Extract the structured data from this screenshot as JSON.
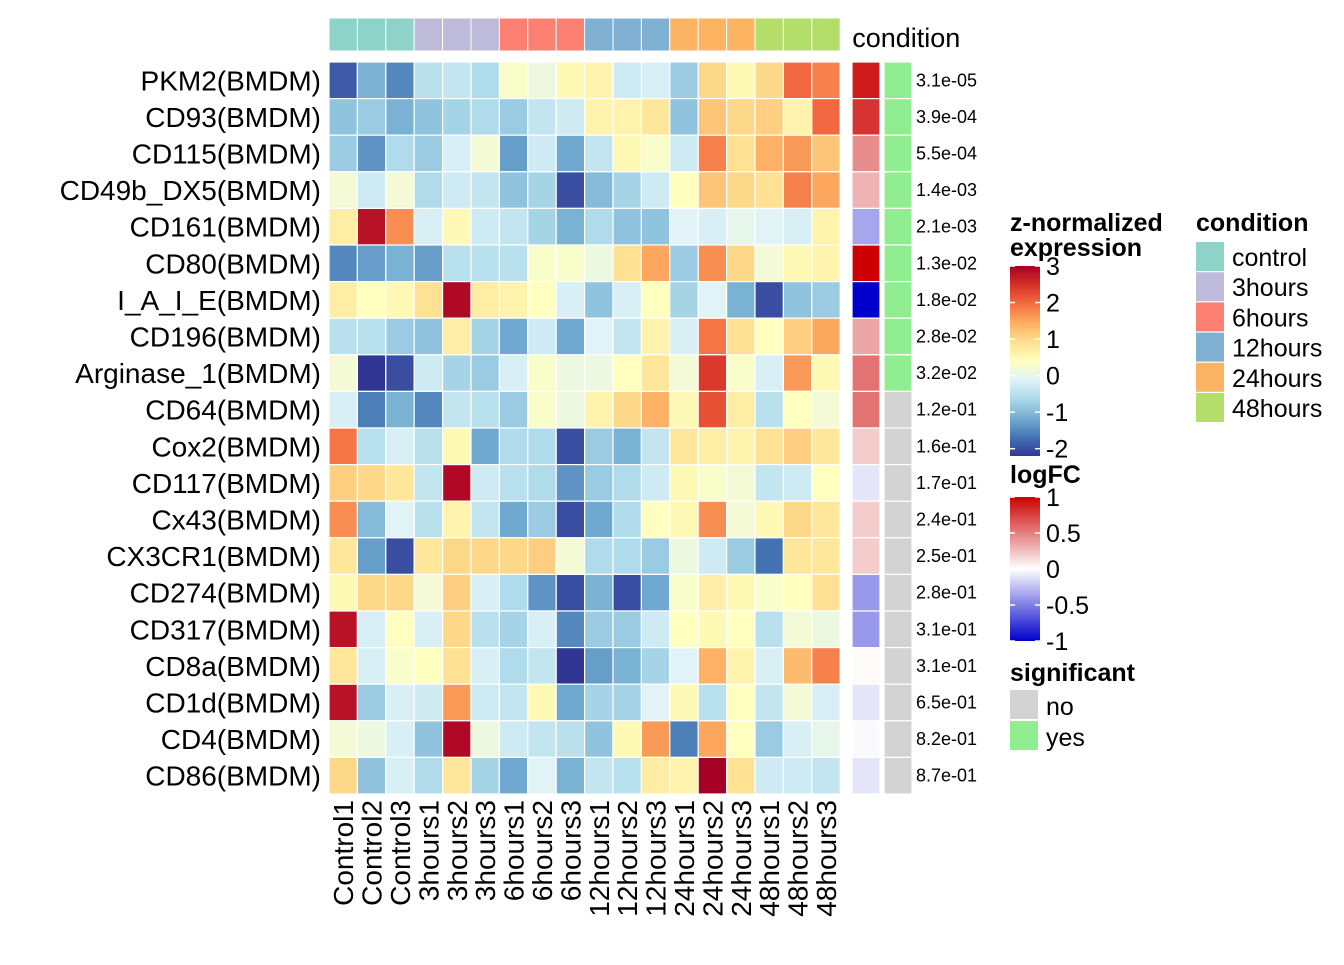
{
  "chart_data": {
    "type": "heatmap",
    "title": "",
    "xlabel": "",
    "ylabel": "",
    "samples": [
      "Control1",
      "Control2",
      "Control3",
      "3hours1",
      "3hours2",
      "3hours3",
      "6hours1",
      "6hours2",
      "6hours3",
      "12hours1",
      "12hours2",
      "12hours3",
      "24hours1",
      "24hours2",
      "24hours3",
      "48hours1",
      "48hours2",
      "48hours3"
    ],
    "sample_condition": [
      "control",
      "control",
      "control",
      "3hours",
      "3hours",
      "3hours",
      "6hours",
      "6hours",
      "6hours",
      "12hours",
      "12hours",
      "12hours",
      "24hours",
      "24hours",
      "24hours",
      "48hours",
      "48hours",
      "48hours"
    ],
    "genes": [
      "PKM2(BMDM)",
      "CD93(BMDM)",
      "CD115(BMDM)",
      "CD49b_DX5(BMDM)",
      "CD161(BMDM)",
      "CD80(BMDM)",
      "I_A_I_E(BMDM)",
      "CD196(BMDM)",
      "Arginase_1(BMDM)",
      "CD64(BMDM)",
      "Cox2(BMDM)",
      "CD117(BMDM)",
      "Cx43(BMDM)",
      "CX3CR1(BMDM)",
      "CD274(BMDM)",
      "CD317(BMDM)",
      "CD8a(BMDM)",
      "CD1d(BMDM)",
      "CD4(BMDM)",
      "CD86(BMDM)"
    ],
    "z_values": [
      [
        -1.9,
        -1.1,
        -1.5,
        -0.5,
        -0.4,
        -0.6,
        0.3,
        0.1,
        0.5,
        0.6,
        -0.3,
        -0.2,
        -0.8,
        1.0,
        0.5,
        1.0,
        2.0,
        1.8
      ],
      [
        -0.9,
        -0.8,
        -1.1,
        -0.9,
        -0.7,
        -0.6,
        -0.8,
        -0.4,
        -0.3,
        0.6,
        0.6,
        0.8,
        -0.9,
        1.2,
        1.0,
        1.1,
        0.6,
        2.0
      ],
      [
        -0.8,
        -1.4,
        -0.6,
        -0.8,
        -0.2,
        0.2,
        -1.3,
        -0.3,
        -1.2,
        -0.4,
        0.5,
        0.3,
        -0.3,
        1.8,
        0.9,
        1.4,
        1.6,
        1.2
      ],
      [
        0.2,
        -0.3,
        0.2,
        -0.6,
        -0.3,
        -0.4,
        -0.9,
        -0.7,
        -2.0,
        -1.0,
        -0.7,
        -0.3,
        0.4,
        1.2,
        1.0,
        0.9,
        1.8,
        1.5
      ],
      [
        0.7,
        2.8,
        1.7,
        -0.2,
        0.5,
        -0.3,
        -0.4,
        -0.7,
        -1.1,
        -0.6,
        -0.9,
        -0.9,
        -0.1,
        -0.2,
        0.0,
        -0.1,
        -0.2,
        0.6
      ],
      [
        -1.5,
        -1.3,
        -1.1,
        -1.3,
        -0.5,
        -0.5,
        -0.5,
        0.3,
        0.3,
        0.1,
        0.9,
        1.5,
        -0.8,
        1.7,
        1.0,
        0.2,
        0.5,
        0.6
      ],
      [
        0.7,
        0.4,
        0.5,
        0.9,
        2.9,
        0.7,
        0.6,
        0.4,
        -0.2,
        -0.9,
        -0.2,
        0.4,
        -0.7,
        -0.1,
        -1.1,
        -2.0,
        -0.9,
        -0.8
      ],
      [
        -0.5,
        -0.5,
        -0.8,
        -0.9,
        0.7,
        -0.7,
        -1.2,
        -0.3,
        -1.2,
        -0.1,
        -0.4,
        0.6,
        -0.2,
        1.9,
        0.9,
        0.4,
        1.1,
        1.5
      ],
      [
        0.2,
        -2.2,
        -2.0,
        -0.3,
        -0.7,
        -0.8,
        -0.2,
        0.3,
        0.1,
        0.1,
        0.4,
        0.8,
        0.2,
        2.4,
        0.3,
        -0.2,
        1.6,
        0.5
      ],
      [
        -0.2,
        -1.6,
        -1.1,
        -1.5,
        -0.4,
        -0.5,
        -0.8,
        0.3,
        0.1,
        0.6,
        1.0,
        1.4,
        0.5,
        2.2,
        0.7,
        -0.5,
        0.4,
        0.2
      ],
      [
        1.9,
        -0.5,
        -0.2,
        -0.5,
        0.5,
        -1.2,
        -0.6,
        -0.6,
        -2.0,
        -0.8,
        -1.1,
        -0.4,
        0.8,
        0.7,
        0.6,
        0.9,
        1.1,
        0.8
      ],
      [
        1.1,
        1.0,
        0.8,
        -0.4,
        2.9,
        -0.3,
        -0.5,
        -0.6,
        -1.4,
        -0.8,
        -0.6,
        -0.3,
        0.5,
        0.3,
        0.2,
        -0.4,
        -0.3,
        0.4
      ],
      [
        1.7,
        -1.0,
        -0.1,
        -0.5,
        0.6,
        -0.4,
        -1.2,
        -0.8,
        -2.0,
        -1.2,
        -0.6,
        0.4,
        0.5,
        1.7,
        0.2,
        0.5,
        1.0,
        0.8
      ],
      [
        0.8,
        -1.3,
        -2.0,
        0.8,
        1.0,
        1.0,
        1.0,
        1.1,
        0.2,
        -0.6,
        -0.6,
        -0.8,
        0.1,
        -0.3,
        -0.8,
        -1.7,
        0.8,
        0.8
      ],
      [
        0.5,
        1.0,
        1.0,
        0.2,
        1.1,
        -0.2,
        -0.6,
        -1.4,
        -2.0,
        -1.1,
        -2.0,
        -1.2,
        0.3,
        0.7,
        0.5,
        0.3,
        0.4,
        0.9
      ],
      [
        2.8,
        -0.2,
        0.4,
        -0.2,
        1.0,
        -0.5,
        -0.7,
        -0.2,
        -1.5,
        -0.8,
        -0.8,
        -0.3,
        0.4,
        0.5,
        0.4,
        -0.5,
        0.2,
        0.1
      ],
      [
        0.8,
        -0.2,
        0.3,
        0.4,
        0.9,
        -0.2,
        -0.6,
        -0.4,
        -2.2,
        -1.3,
        -1.1,
        -0.7,
        -0.1,
        1.4,
        0.6,
        -0.2,
        1.3,
        1.8
      ],
      [
        2.8,
        -0.8,
        -0.2,
        -0.3,
        1.6,
        -0.3,
        -0.4,
        0.5,
        -1.2,
        -0.7,
        -0.7,
        -0.1,
        0.5,
        -0.5,
        0.4,
        -0.4,
        0.2,
        -0.2
      ],
      [
        0.2,
        0.1,
        -0.2,
        -0.9,
        2.9,
        0.1,
        -0.3,
        -0.4,
        -0.5,
        -0.9,
        0.5,
        1.6,
        -1.6,
        1.5,
        0.4,
        -0.8,
        -0.2,
        0.0
      ],
      [
        1.0,
        -0.9,
        -0.2,
        -0.6,
        0.8,
        -0.7,
        -1.2,
        -0.1,
        -1.1,
        -0.4,
        -0.5,
        0.7,
        0.6,
        3.0,
        0.9,
        -0.3,
        -0.3,
        -0.4
      ]
    ],
    "logFC": [
      0.9,
      0.8,
      0.45,
      0.3,
      -0.35,
      1.0,
      -1.0,
      0.35,
      0.55,
      0.55,
      0.2,
      -0.1,
      0.2,
      0.2,
      -0.4,
      -0.4,
      0.02,
      -0.1,
      -0.02,
      -0.1
    ],
    "significant": [
      "yes",
      "yes",
      "yes",
      "yes",
      "yes",
      "yes",
      "yes",
      "yes",
      "yes",
      "no",
      "no",
      "no",
      "no",
      "no",
      "no",
      "no",
      "no",
      "no",
      "no",
      "no"
    ],
    "pvalue_labels": [
      "3.1e-05",
      "3.9e-04",
      "5.5e-04",
      "1.4e-03",
      "2.1e-03",
      "1.3e-02",
      "1.8e-02",
      "2.8e-02",
      "3.2e-02",
      "1.2e-01",
      "1.6e-01",
      "1.7e-01",
      "2.4e-01",
      "2.5e-01",
      "2.8e-01",
      "3.1e-01",
      "3.1e-01",
      "6.5e-01",
      "8.2e-01",
      "8.7e-01"
    ],
    "condition_annotation_label": "condition",
    "legend_z": {
      "title_line1": "z-normalized",
      "title_line2": "expression",
      "ticks": [
        "3",
        "2",
        "1",
        "0",
        "-1",
        "-2"
      ],
      "tick_values": [
        3,
        2,
        1,
        0,
        -1,
        -2
      ],
      "range": [
        -2.2,
        3.0
      ]
    },
    "legend_logfc": {
      "title": "logFC",
      "ticks": [
        "1",
        "0.5",
        "0",
        "-0.5",
        "-1"
      ],
      "tick_values": [
        1,
        0.5,
        0,
        -0.5,
        -1
      ],
      "range": [
        -1,
        1
      ]
    },
    "legend_significant": {
      "title": "significant",
      "items": [
        {
          "label": "no",
          "color": "#d3d3d3"
        },
        {
          "label": "yes",
          "color": "#90ee90"
        }
      ]
    },
    "legend_condition": {
      "title": "condition",
      "items": [
        {
          "label": "control",
          "color": "#8dd3c7"
        },
        {
          "label": "3hours",
          "color": "#bebada"
        },
        {
          "label": "6hours",
          "color": "#fb8072"
        },
        {
          "label": "12hours",
          "color": "#80b1d3"
        },
        {
          "label": "24hours",
          "color": "#fdb462"
        },
        {
          "label": "48hours",
          "color": "#b3de69"
        }
      ]
    },
    "z_colors": [
      "#313695",
      "#4575b4",
      "#74add1",
      "#abd9e9",
      "#e0f3f8",
      "#ffffbf",
      "#fee090",
      "#fdae61",
      "#f46d43",
      "#d73027",
      "#a50026"
    ],
    "logfc_colors": {
      "low": "#0000cc",
      "mid": "#ffffff",
      "high": "#cc0000"
    }
  }
}
